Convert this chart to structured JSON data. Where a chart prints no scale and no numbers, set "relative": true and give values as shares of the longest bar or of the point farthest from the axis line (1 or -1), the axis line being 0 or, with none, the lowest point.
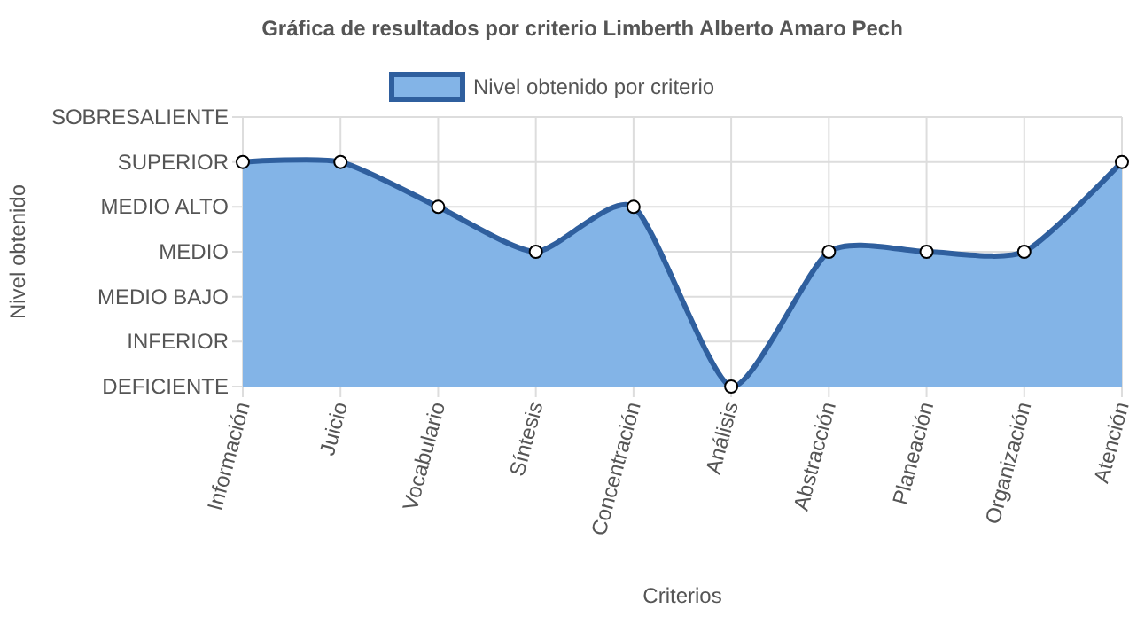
{
  "chart_data": {
    "type": "area",
    "title": "Gráfica de resultados por criterio Limberth Alberto Amaro Pech",
    "xlabel": "Criterios",
    "categories": [
      "Información",
      "Juicio",
      "Vocabulario",
      "Síntesis",
      "Concentración",
      "Análisis",
      "Abstracción",
      "Planeación",
      "Organización",
      "Atención"
    ],
    "series": [
      {
        "name": "Nivel obtenido por criterio",
        "color": "#2f5f9e",
        "values": [
          1,
          1,
          0.8,
          0.6,
          0.8,
          0,
          0.6,
          0.6,
          0.6,
          1
        ]
      }
    ],
    "relative": true,
    "annotations": [
      "Nivel obtenido",
      "SOBRESALIENTE",
      "SUPERIOR",
      "MEDIO ALTO",
      "MEDIO",
      "MEDIO BAJO",
      "INFERIOR",
      "DEFICIENTE"
    ],
    "grid": true,
    "legend": "top",
    "marker": "circle",
    "line_style": "solid"
  }
}
